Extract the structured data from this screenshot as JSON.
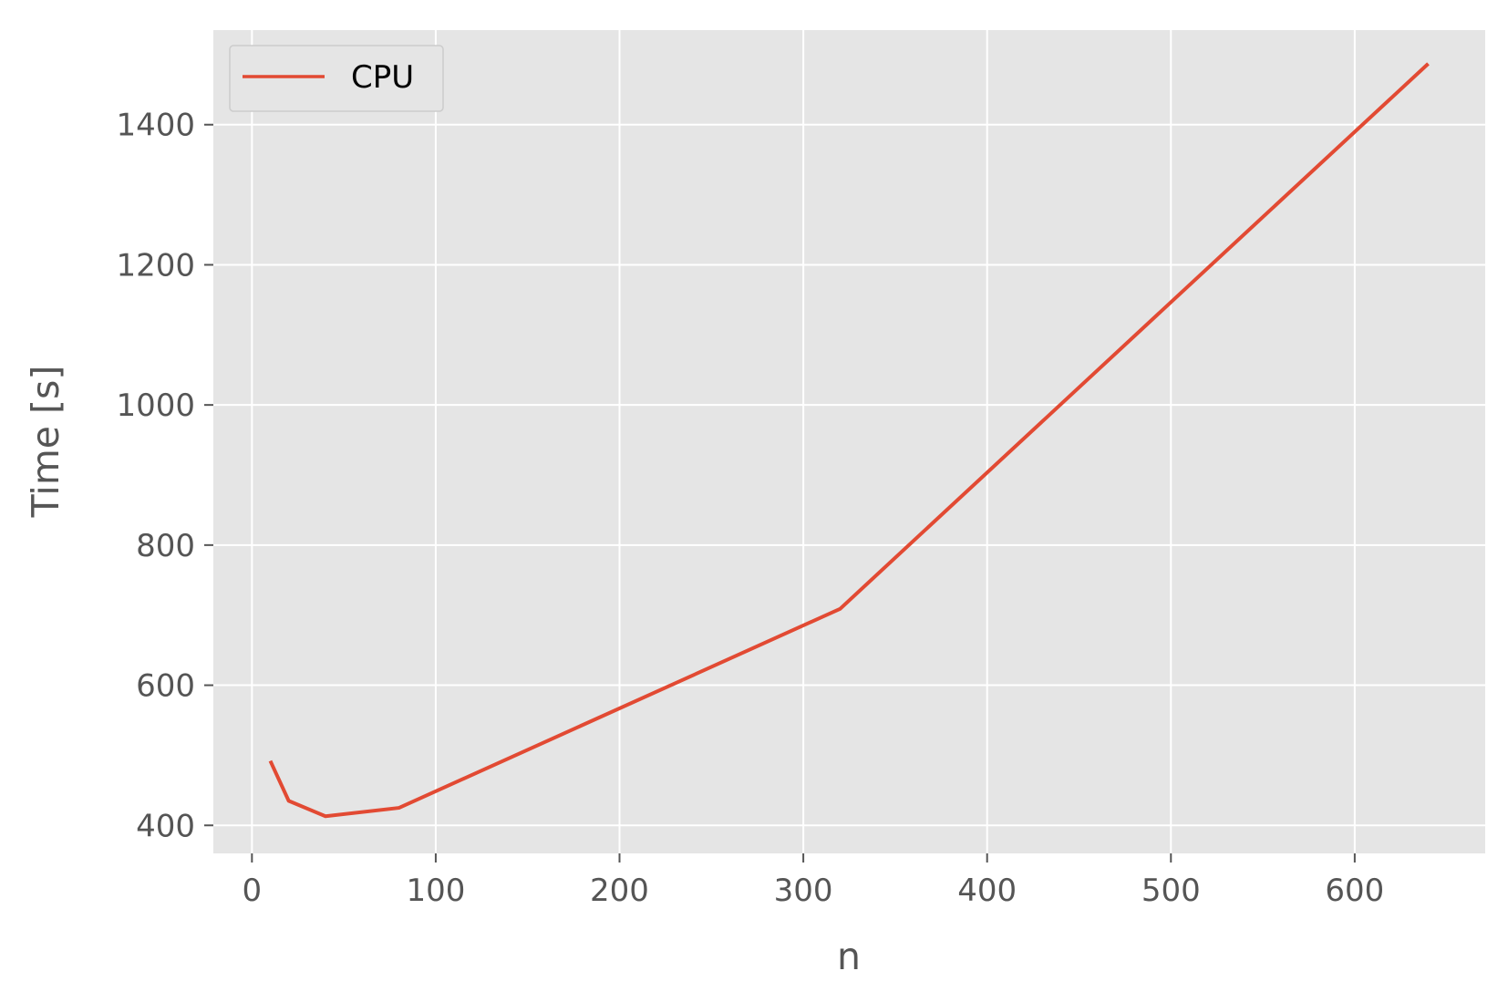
{
  "chart_data": {
    "type": "line",
    "title": "",
    "xlabel": "n",
    "ylabel": "Time [s]",
    "xlim": [
      -21,
      671
    ],
    "ylim": [
      360,
      1535
    ],
    "x_ticks": [
      0,
      100,
      200,
      300,
      400,
      500,
      600
    ],
    "y_ticks": [
      400,
      600,
      800,
      1000,
      1200,
      1400
    ],
    "grid": true,
    "legend_position": "top-left",
    "style": {
      "plot_background": "#e5e5e5",
      "grid_color": "#ffffff",
      "tick_color": "#555555"
    },
    "series": [
      {
        "name": "CPU",
        "color": "#e24a33",
        "x": [
          10,
          20,
          40,
          80,
          320,
          640
        ],
        "y": [
          492,
          435,
          413,
          425,
          709,
          1487
        ]
      }
    ]
  }
}
